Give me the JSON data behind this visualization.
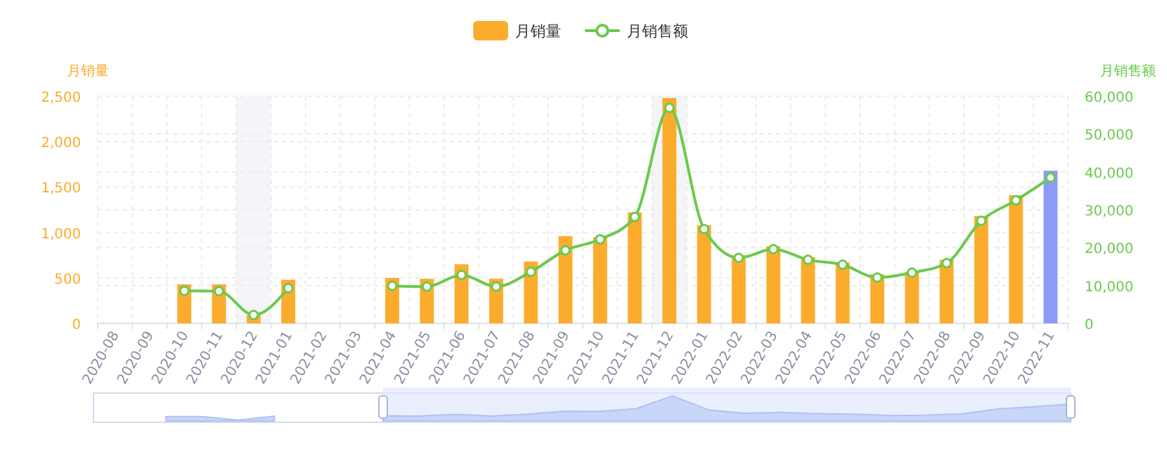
{
  "chart_data": {
    "type": "bar",
    "categories": [
      "2020-08",
      "2020-09",
      "2020-10",
      "2020-11",
      "2020-12",
      "2021-01",
      "2021-02",
      "2021-03",
      "2021-04",
      "2021-05",
      "2021-06",
      "2021-07",
      "2021-08",
      "2021-09",
      "2021-10",
      "2021-11",
      "2021-12",
      "2022-01",
      "2022-02",
      "2022-03",
      "2022-04",
      "2022-05",
      "2022-06",
      "2022-07",
      "2022-08",
      "2022-09",
      "2022-10",
      "2022-11"
    ],
    "ylabel": "月销量",
    "y2label": "月销售额",
    "ylim": [
      0,
      2500
    ],
    "yticks": [
      0,
      500,
      {
        "value": 1000,
        "label": "1,000"
      },
      {
        "value": 1500,
        "label": "1,500"
      },
      {
        "value": 2000,
        "label": "2,000"
      },
      {
        "value": 2500,
        "label": "2,500"
      }
    ],
    "y2lim": [
      0,
      60000
    ],
    "y2ticks": [
      0,
      {
        "value": 10000,
        "label": "10,000"
      },
      {
        "value": 20000,
        "label": "20,000"
      },
      {
        "value": 30000,
        "label": "30,000"
      },
      {
        "value": 40000,
        "label": "40,000"
      },
      {
        "value": 50000,
        "label": "50,000"
      },
      {
        "value": 60000,
        "label": "60,000"
      }
    ],
    "grid": true,
    "legend": "top",
    "bands": [
      {
        "axis": "x",
        "from": "2020-12",
        "to": "2020-12",
        "color": "#f3f5f9"
      },
      {
        "axis": "x",
        "from": "2021-12",
        "to": "2021-12",
        "color": "#f3f5f9"
      }
    ],
    "series": [
      {
        "name": "月销量",
        "color": "#fcac2d",
        "colors": [
          null,
          null,
          "#fcac2d",
          "#fcac2d",
          "#fcac2d",
          "#fcac2d",
          null,
          null,
          "#fcac2d",
          "#fcac2d",
          "#fcac2d",
          "#fcac2d",
          "#fcac2d",
          "#fcac2d",
          "#fcac2d",
          "#fcac2d",
          "#fcac2d",
          "#fcac2d",
          "#fcac2d",
          "#fcac2d",
          "#fcac2d",
          "#fcac2d",
          "#fcac2d",
          "#fcac2d",
          "#fcac2d",
          "#fcac2d",
          "#fcac2d",
          "#8c9cf6"
        ],
        "values": [
          null,
          null,
          430,
          430,
          90,
          480,
          null,
          null,
          500,
          490,
          650,
          490,
          680,
          960,
          950,
          1220,
          2480,
          1080,
          750,
          850,
          730,
          670,
          540,
          570,
          700,
          1180,
          1410,
          1680
        ]
      },
      {
        "name": "月销售额",
        "type": "line",
        "axis": "y2",
        "color": "#6cc94e",
        "marker": "circle",
        "values": [
          null,
          null,
          8600,
          8500,
          2200,
          9300,
          null,
          null,
          9900,
          9700,
          12800,
          9700,
          13600,
          19300,
          22200,
          28100,
          56900,
          24900,
          17300,
          19600,
          16800,
          15500,
          12100,
          13400,
          15900,
          27100,
          32500,
          38500
        ]
      }
    ]
  }
}
